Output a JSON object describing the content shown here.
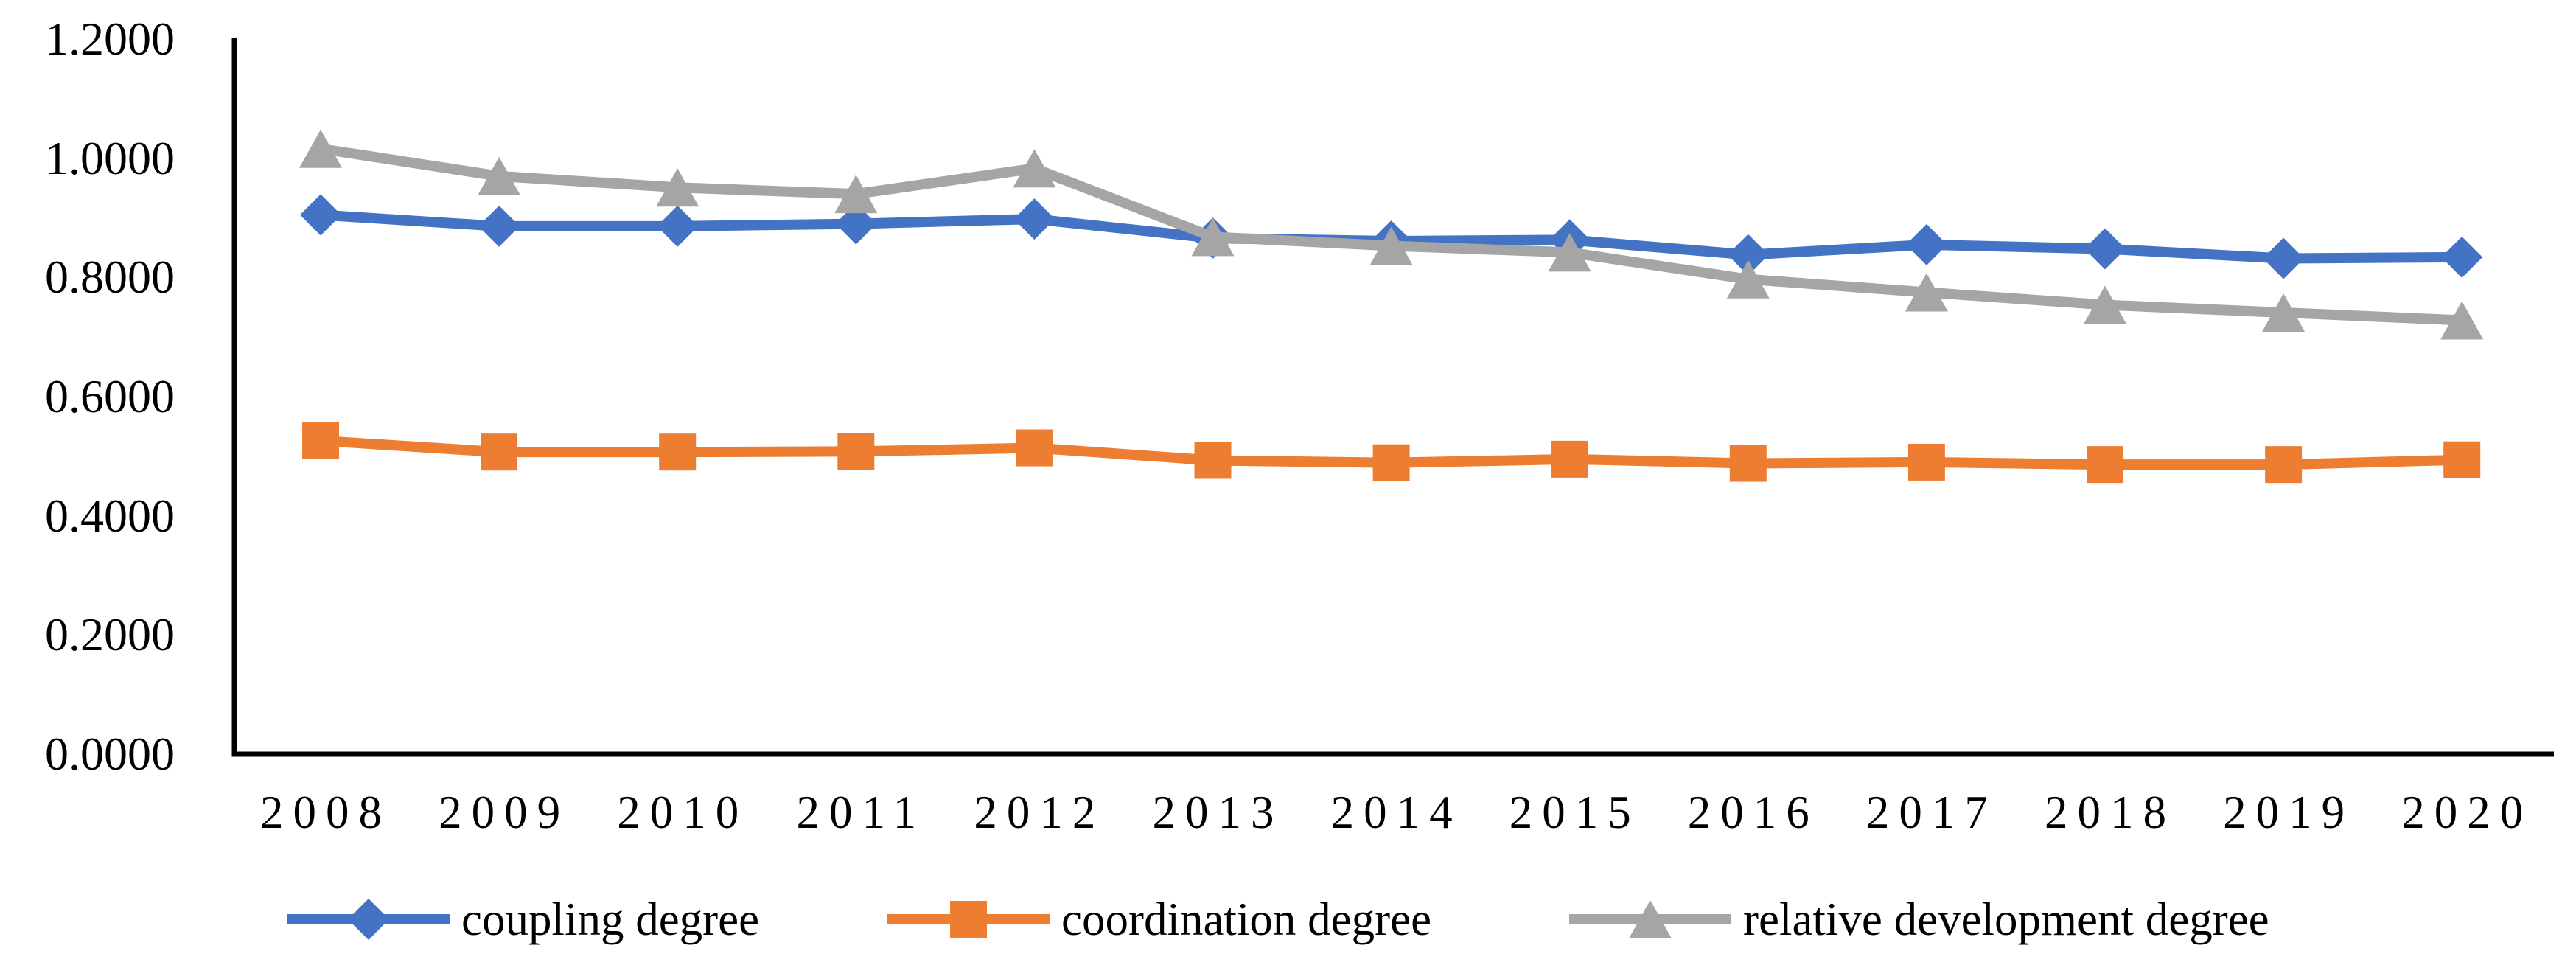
{
  "chart_data": {
    "type": "line",
    "title": "",
    "xlabel": "",
    "ylabel": "",
    "categories": [
      "2008",
      "2009",
      "2010",
      "2011",
      "2012",
      "2013",
      "2014",
      "2015",
      "2016",
      "2017",
      "2018",
      "2019",
      "2020"
    ],
    "series": [
      {
        "name": "coupling degree",
        "marker": "diamond",
        "color": "#4472C4",
        "values": [
          0.905,
          0.886,
          0.886,
          0.89,
          0.898,
          0.866,
          0.861,
          0.863,
          0.838,
          0.855,
          0.848,
          0.832,
          0.834
        ]
      },
      {
        "name": "coordination degree",
        "marker": "square",
        "color": "#ED7D31",
        "values": [
          0.526,
          0.507,
          0.507,
          0.508,
          0.514,
          0.493,
          0.489,
          0.495,
          0.488,
          0.49,
          0.486,
          0.486,
          0.494
        ]
      },
      {
        "name": "relative development degree",
        "marker": "triangle",
        "color": "#A5A5A5",
        "values": [
          1.016,
          0.97,
          0.951,
          0.94,
          0.983,
          0.868,
          0.853,
          0.842,
          0.797,
          0.775,
          0.754,
          0.741,
          0.728
        ]
      }
    ],
    "ylim": [
      0.0,
      1.2
    ],
    "y_ticks": [
      "0.0000",
      "0.2000",
      "0.4000",
      "0.6000",
      "0.8000",
      "1.0000",
      "1.2000"
    ],
    "grid": false,
    "legend_position": "bottom",
    "axis_color": "#000000"
  }
}
